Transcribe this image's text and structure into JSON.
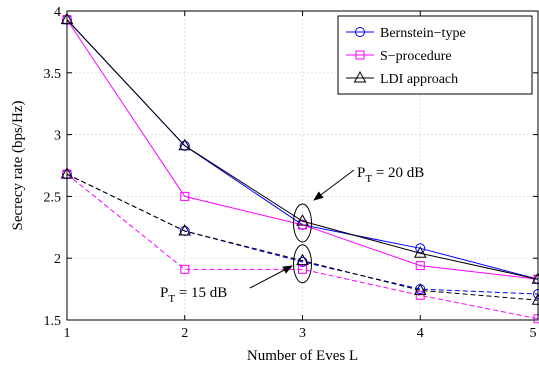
{
  "chart_data": {
    "type": "line",
    "xlabel": "Number of Eves L",
    "ylabel": "Secrecy rate (bps/Hz)",
    "xlim": [
      1,
      5
    ],
    "ylim": [
      1.5,
      4
    ],
    "x_ticks": [
      1,
      2,
      3,
      4,
      5
    ],
    "y_ticks": [
      1.5,
      2,
      2.5,
      3,
      3.5,
      4
    ],
    "x_tick_labels": [
      "1",
      "2",
      "3",
      "4",
      "5"
    ],
    "y_tick_labels": [
      "1.5",
      "2",
      "2.5",
      "3",
      "3.5",
      "4"
    ],
    "grid": true,
    "legend_position": "top-right",
    "x": [
      1,
      2,
      3,
      4,
      5
    ],
    "series": [
      {
        "name": "Bernstein−type",
        "color": "#0000ff",
        "marker": "circle",
        "line": "solid",
        "values": [
          3.93,
          2.91,
          2.27,
          2.08,
          1.83
        ]
      },
      {
        "name": "S−procedure",
        "color": "#ff00ff",
        "marker": "square",
        "line": "solid",
        "values": [
          3.93,
          2.5,
          2.27,
          1.94,
          1.83
        ]
      },
      {
        "name": "LDI approach",
        "color": "#000000",
        "marker": "triangle",
        "line": "solid",
        "values": [
          3.93,
          2.91,
          2.3,
          2.04,
          1.83
        ]
      },
      {
        "name": "",
        "color": "#0000ff",
        "marker": "circle",
        "line": "dashed",
        "values": [
          2.68,
          2.22,
          1.97,
          1.75,
          1.71
        ]
      },
      {
        "name": "",
        "color": "#ff00ff",
        "marker": "square",
        "line": "dashed",
        "values": [
          2.68,
          1.91,
          1.91,
          1.7,
          1.51
        ]
      },
      {
        "name": "",
        "color": "#000000",
        "marker": "triangle",
        "line": "dashed",
        "values": [
          2.68,
          2.22,
          1.98,
          1.74,
          1.66
        ]
      }
    ],
    "annotations": [
      {
        "text_main": "P",
        "text_sub": "T",
        "text_rest": " = 20 dB",
        "x": 3,
        "y": 2.285
      },
      {
        "text_main": "P",
        "text_sub": "T",
        "text_rest": " = 15 dB",
        "x": 3,
        "y": 1.955
      }
    ]
  }
}
